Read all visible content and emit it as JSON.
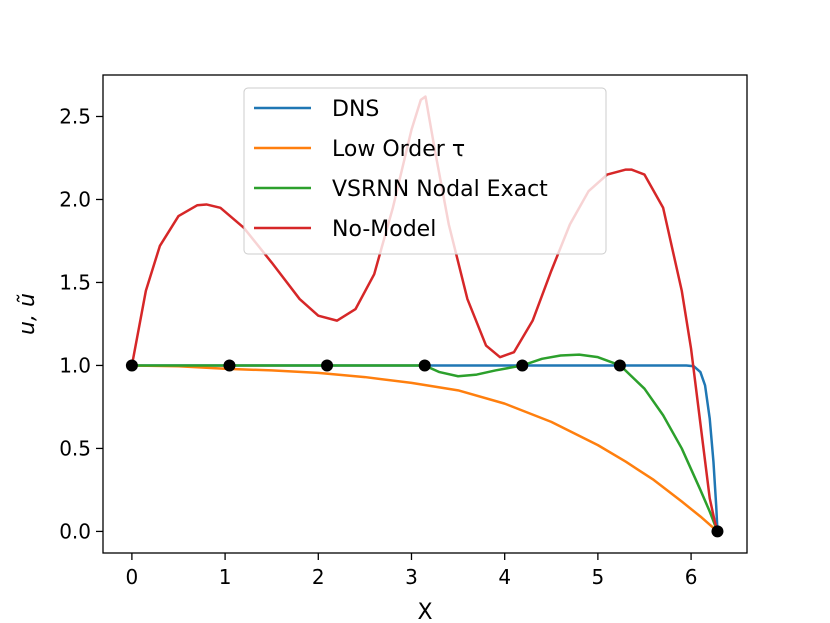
{
  "chart_data": {
    "type": "line",
    "xlabel": "X",
    "ylabel": "u, ũ",
    "xlim": [
      -0.31,
      6.6
    ],
    "ylim": [
      -0.13,
      2.75
    ],
    "xticks": [
      0,
      1,
      2,
      3,
      4,
      5,
      6
    ],
    "yticks": [
      0.0,
      0.5,
      1.0,
      1.5,
      2.0,
      2.5
    ],
    "xtick_labels": [
      "0",
      "1",
      "2",
      "3",
      "4",
      "5",
      "6"
    ],
    "ytick_labels": [
      "0.0",
      "0.5",
      "1.0",
      "1.5",
      "2.0",
      "2.5"
    ],
    "legend_position": "upper center",
    "series": [
      {
        "name": "DNS",
        "color": "#1f77b4",
        "x": [
          0,
          0.5,
          1.0,
          2.0,
          3.0,
          4.0,
          5.0,
          5.5,
          5.8,
          5.95,
          6.03,
          6.1,
          6.15,
          6.2,
          6.24,
          6.27,
          6.283
        ],
        "y": [
          1.0,
          1.0,
          1.0,
          1.0,
          1.0,
          1.0,
          1.0,
          1.0,
          1.0,
          1.0,
          0.995,
          0.96,
          0.88,
          0.68,
          0.42,
          0.15,
          0.0
        ]
      },
      {
        "name": "Low Order τ",
        "color": "#ff7f0e",
        "x": [
          0,
          0.5,
          1.0,
          1.5,
          2.0,
          2.5,
          3.0,
          3.5,
          4.0,
          4.5,
          5.0,
          5.3,
          5.6,
          5.9,
          6.1,
          6.283
        ],
        "y": [
          1.0,
          0.995,
          0.98,
          0.97,
          0.955,
          0.93,
          0.895,
          0.85,
          0.77,
          0.66,
          0.52,
          0.42,
          0.31,
          0.18,
          0.09,
          0.0
        ]
      },
      {
        "name": "VSRNN Nodal Exact",
        "color": "#2ca02c",
        "x": [
          0,
          0.5,
          1.0,
          1.5,
          2.0,
          2.5,
          3.0,
          3.14,
          3.3,
          3.5,
          3.7,
          3.9,
          4.19,
          4.4,
          4.6,
          4.8,
          5.0,
          5.24,
          5.5,
          5.7,
          5.9,
          6.1,
          6.2,
          6.283
        ],
        "y": [
          1.0,
          1.0,
          1.0,
          1.0,
          1.0,
          1.0,
          1.0,
          1.0,
          0.96,
          0.935,
          0.945,
          0.97,
          1.0,
          1.04,
          1.06,
          1.065,
          1.05,
          1.0,
          0.86,
          0.7,
          0.5,
          0.25,
          0.12,
          0.0
        ]
      },
      {
        "name": "No-Model",
        "color": "#d62728",
        "x": [
          0,
          0.05,
          0.15,
          0.3,
          0.5,
          0.7,
          0.8,
          0.95,
          1.2,
          1.5,
          1.8,
          2.0,
          2.2,
          2.4,
          2.6,
          2.8,
          3.0,
          3.1,
          3.15,
          3.25,
          3.4,
          3.6,
          3.8,
          3.95,
          4.1,
          4.3,
          4.5,
          4.7,
          4.9,
          5.1,
          5.3,
          5.36,
          5.5,
          5.7,
          5.9,
          6.0,
          6.1,
          6.2,
          6.25,
          6.283
        ],
        "y": [
          1.0,
          1.15,
          1.45,
          1.72,
          1.9,
          1.965,
          1.97,
          1.95,
          1.83,
          1.62,
          1.4,
          1.3,
          1.27,
          1.34,
          1.55,
          1.95,
          2.42,
          2.6,
          2.62,
          2.3,
          1.85,
          1.4,
          1.12,
          1.05,
          1.08,
          1.27,
          1.57,
          1.85,
          2.05,
          2.15,
          2.18,
          2.18,
          2.15,
          1.95,
          1.45,
          1.1,
          0.65,
          0.2,
          0.07,
          0.0
        ]
      }
    ],
    "markers": {
      "color": "#000000",
      "x": [
        0,
        1.047,
        2.094,
        3.142,
        4.189,
        5.236,
        6.283
      ],
      "y": [
        1.0,
        1.0,
        1.0,
        1.0,
        1.0,
        1.0,
        0.0
      ]
    }
  }
}
